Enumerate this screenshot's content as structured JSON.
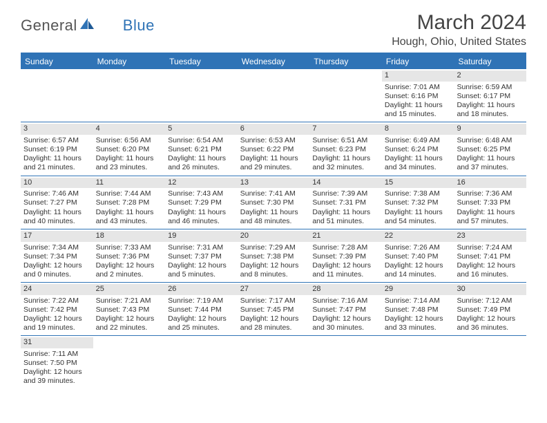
{
  "logo": {
    "text1": "General",
    "text2": "Blue"
  },
  "title": "March 2024",
  "location": "Hough, Ohio, United States",
  "colors": {
    "accent": "#2f73b6",
    "grayBand": "#e6e6e6",
    "text": "#333333",
    "bg": "#ffffff"
  },
  "dow": [
    "Sunday",
    "Monday",
    "Tuesday",
    "Wednesday",
    "Thursday",
    "Friday",
    "Saturday"
  ],
  "weeks": [
    [
      {
        "blank": true
      },
      {
        "blank": true
      },
      {
        "blank": true
      },
      {
        "blank": true
      },
      {
        "blank": true
      },
      {
        "n": "1",
        "sr": "Sunrise: 7:01 AM",
        "ss": "Sunset: 6:16 PM",
        "dl": "Daylight: 11 hours and 15 minutes."
      },
      {
        "n": "2",
        "sr": "Sunrise: 6:59 AM",
        "ss": "Sunset: 6:17 PM",
        "dl": "Daylight: 11 hours and 18 minutes."
      }
    ],
    [
      {
        "n": "3",
        "sr": "Sunrise: 6:57 AM",
        "ss": "Sunset: 6:19 PM",
        "dl": "Daylight: 11 hours and 21 minutes."
      },
      {
        "n": "4",
        "sr": "Sunrise: 6:56 AM",
        "ss": "Sunset: 6:20 PM",
        "dl": "Daylight: 11 hours and 23 minutes."
      },
      {
        "n": "5",
        "sr": "Sunrise: 6:54 AM",
        "ss": "Sunset: 6:21 PM",
        "dl": "Daylight: 11 hours and 26 minutes."
      },
      {
        "n": "6",
        "sr": "Sunrise: 6:53 AM",
        "ss": "Sunset: 6:22 PM",
        "dl": "Daylight: 11 hours and 29 minutes."
      },
      {
        "n": "7",
        "sr": "Sunrise: 6:51 AM",
        "ss": "Sunset: 6:23 PM",
        "dl": "Daylight: 11 hours and 32 minutes."
      },
      {
        "n": "8",
        "sr": "Sunrise: 6:49 AM",
        "ss": "Sunset: 6:24 PM",
        "dl": "Daylight: 11 hours and 34 minutes."
      },
      {
        "n": "9",
        "sr": "Sunrise: 6:48 AM",
        "ss": "Sunset: 6:25 PM",
        "dl": "Daylight: 11 hours and 37 minutes."
      }
    ],
    [
      {
        "n": "10",
        "sr": "Sunrise: 7:46 AM",
        "ss": "Sunset: 7:27 PM",
        "dl": "Daylight: 11 hours and 40 minutes."
      },
      {
        "n": "11",
        "sr": "Sunrise: 7:44 AM",
        "ss": "Sunset: 7:28 PM",
        "dl": "Daylight: 11 hours and 43 minutes."
      },
      {
        "n": "12",
        "sr": "Sunrise: 7:43 AM",
        "ss": "Sunset: 7:29 PM",
        "dl": "Daylight: 11 hours and 46 minutes."
      },
      {
        "n": "13",
        "sr": "Sunrise: 7:41 AM",
        "ss": "Sunset: 7:30 PM",
        "dl": "Daylight: 11 hours and 48 minutes."
      },
      {
        "n": "14",
        "sr": "Sunrise: 7:39 AM",
        "ss": "Sunset: 7:31 PM",
        "dl": "Daylight: 11 hours and 51 minutes."
      },
      {
        "n": "15",
        "sr": "Sunrise: 7:38 AM",
        "ss": "Sunset: 7:32 PM",
        "dl": "Daylight: 11 hours and 54 minutes."
      },
      {
        "n": "16",
        "sr": "Sunrise: 7:36 AM",
        "ss": "Sunset: 7:33 PM",
        "dl": "Daylight: 11 hours and 57 minutes."
      }
    ],
    [
      {
        "n": "17",
        "sr": "Sunrise: 7:34 AM",
        "ss": "Sunset: 7:34 PM",
        "dl": "Daylight: 12 hours and 0 minutes."
      },
      {
        "n": "18",
        "sr": "Sunrise: 7:33 AM",
        "ss": "Sunset: 7:36 PM",
        "dl": "Daylight: 12 hours and 2 minutes."
      },
      {
        "n": "19",
        "sr": "Sunrise: 7:31 AM",
        "ss": "Sunset: 7:37 PM",
        "dl": "Daylight: 12 hours and 5 minutes."
      },
      {
        "n": "20",
        "sr": "Sunrise: 7:29 AM",
        "ss": "Sunset: 7:38 PM",
        "dl": "Daylight: 12 hours and 8 minutes."
      },
      {
        "n": "21",
        "sr": "Sunrise: 7:28 AM",
        "ss": "Sunset: 7:39 PM",
        "dl": "Daylight: 12 hours and 11 minutes."
      },
      {
        "n": "22",
        "sr": "Sunrise: 7:26 AM",
        "ss": "Sunset: 7:40 PM",
        "dl": "Daylight: 12 hours and 14 minutes."
      },
      {
        "n": "23",
        "sr": "Sunrise: 7:24 AM",
        "ss": "Sunset: 7:41 PM",
        "dl": "Daylight: 12 hours and 16 minutes."
      }
    ],
    [
      {
        "n": "24",
        "sr": "Sunrise: 7:22 AM",
        "ss": "Sunset: 7:42 PM",
        "dl": "Daylight: 12 hours and 19 minutes."
      },
      {
        "n": "25",
        "sr": "Sunrise: 7:21 AM",
        "ss": "Sunset: 7:43 PM",
        "dl": "Daylight: 12 hours and 22 minutes."
      },
      {
        "n": "26",
        "sr": "Sunrise: 7:19 AM",
        "ss": "Sunset: 7:44 PM",
        "dl": "Daylight: 12 hours and 25 minutes."
      },
      {
        "n": "27",
        "sr": "Sunrise: 7:17 AM",
        "ss": "Sunset: 7:45 PM",
        "dl": "Daylight: 12 hours and 28 minutes."
      },
      {
        "n": "28",
        "sr": "Sunrise: 7:16 AM",
        "ss": "Sunset: 7:47 PM",
        "dl": "Daylight: 12 hours and 30 minutes."
      },
      {
        "n": "29",
        "sr": "Sunrise: 7:14 AM",
        "ss": "Sunset: 7:48 PM",
        "dl": "Daylight: 12 hours and 33 minutes."
      },
      {
        "n": "30",
        "sr": "Sunrise: 7:12 AM",
        "ss": "Sunset: 7:49 PM",
        "dl": "Daylight: 12 hours and 36 minutes."
      }
    ],
    [
      {
        "n": "31",
        "sr": "Sunrise: 7:11 AM",
        "ss": "Sunset: 7:50 PM",
        "dl": "Daylight: 12 hours and 39 minutes."
      },
      {
        "blank": true
      },
      {
        "blank": true
      },
      {
        "blank": true
      },
      {
        "blank": true
      },
      {
        "blank": true
      },
      {
        "blank": true
      }
    ]
  ]
}
